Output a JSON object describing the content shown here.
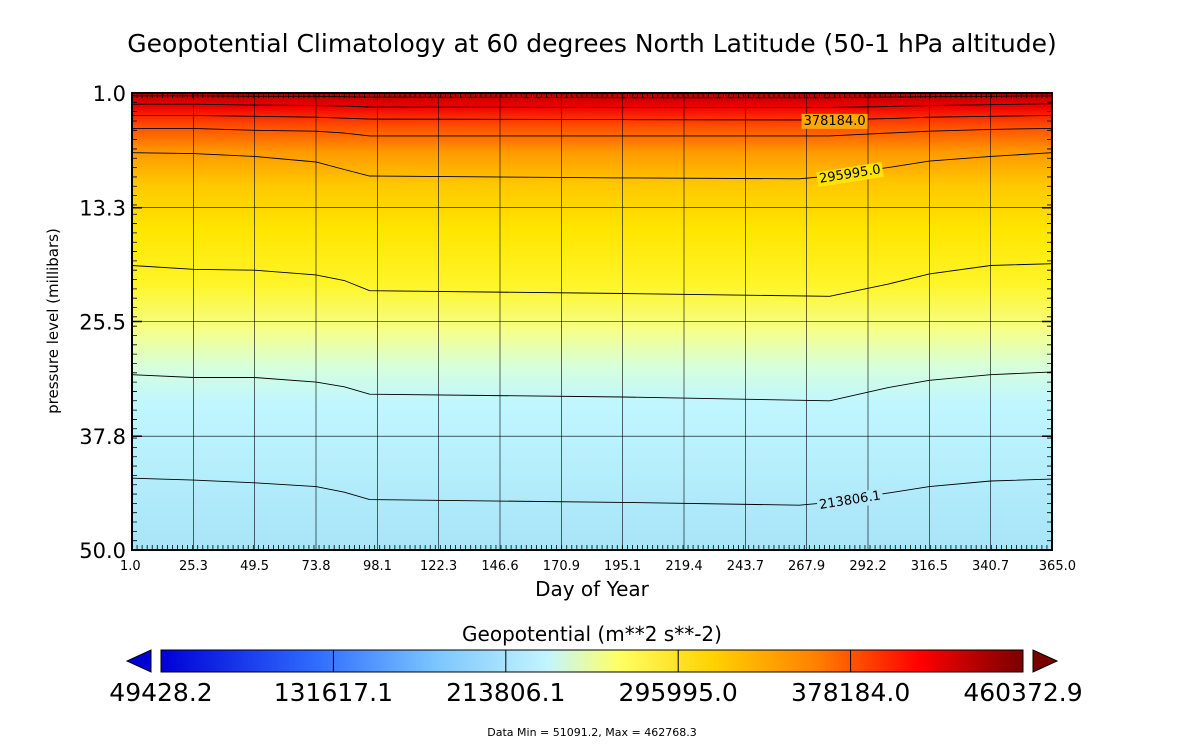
{
  "chart_data": {
    "type": "heatmap",
    "title": "Geopotential Climatology at 60 degrees North Latitude (50-1 hPa altitude)",
    "xlabel": "Day of Year",
    "ylabel": "pressure level (millibars)",
    "xlim": [
      1.0,
      365.0
    ],
    "ylim": [
      50.0,
      1.0
    ],
    "x_ticks": [
      "1.0",
      "25.3",
      "49.5",
      "73.8",
      "98.1",
      "122.3",
      "146.6",
      "170.9",
      "195.1",
      "219.4",
      "243.7",
      "267.9",
      "292.2",
      "316.5",
      "340.7",
      "365.0"
    ],
    "y_ticks": [
      "1.0",
      "13.3",
      "25.5",
      "37.8",
      "50.0"
    ],
    "grid": true,
    "colorbar": {
      "title": "Geopotential (m**2 s**-2)",
      "ticks": [
        "49428.2",
        "131617.1",
        "213806.1",
        "295995.0",
        "378184.0",
        "460372.9"
      ],
      "colors": [
        "#0000d8",
        "#2f6cff",
        "#7cc6ff",
        "#c4f5ff",
        "#ffff66",
        "#ffd200",
        "#ff8000",
        "#ff0000",
        "#7a0000"
      ]
    },
    "contours": [
      {
        "x": [
          1,
          25.3,
          49.5,
          73.8,
          85,
          95,
          195.1,
          277,
          300,
          316.5,
          340.7,
          365
        ],
        "p": [
          1.3,
          1.3,
          1.35,
          1.35,
          1.4,
          1.45,
          1.5,
          1.5,
          1.45,
          1.4,
          1.35,
          1.3
        ]
      },
      {
        "x": [
          1,
          25.3,
          49.5,
          73.8,
          85,
          95,
          195.1,
          277,
          300,
          316.5,
          340.7,
          365
        ],
        "p": [
          2.2,
          2.2,
          2.3,
          2.35,
          2.4,
          2.5,
          2.55,
          2.55,
          2.45,
          2.35,
          2.25,
          2.15
        ]
      },
      {
        "x": [
          1,
          25.3,
          49.5,
          73.8,
          85,
          95,
          195.1,
          277,
          300,
          316.5,
          340.7,
          365
        ],
        "p": [
          3.4,
          3.4,
          3.5,
          3.6,
          3.7,
          3.8,
          3.85,
          3.9,
          3.75,
          3.6,
          3.5,
          3.4
        ],
        "label": "378184.0",
        "label_x": 279
      },
      {
        "x": [
          1,
          25.3,
          49.5,
          73.8,
          85,
          95,
          195.1,
          277,
          300,
          316.5,
          340.7,
          365
        ],
        "p": [
          4.8,
          4.8,
          5.0,
          5.1,
          5.3,
          5.6,
          5.6,
          5.6,
          5.3,
          5.1,
          4.9,
          4.8
        ]
      },
      {
        "x": [
          1,
          25.3,
          49.5,
          73.8,
          85,
          95,
          195.1,
          265,
          277,
          300,
          316.5,
          340.7,
          365
        ],
        "p": [
          7.4,
          7.5,
          7.8,
          8.4,
          9.2,
          9.9,
          10.1,
          10.2,
          9.9,
          9.0,
          8.3,
          7.8,
          7.4
        ],
        "label": "295995.0",
        "label_x": 285
      },
      {
        "x": [
          1,
          25.3,
          49.5,
          73.8,
          85,
          95,
          195.1,
          277,
          300,
          316.5,
          340.7,
          365
        ],
        "p": [
          19.5,
          19.9,
          20.0,
          20.5,
          21.1,
          22.2,
          22.5,
          22.8,
          21.5,
          20.4,
          19.5,
          19.3
        ]
      },
      {
        "x": [
          1,
          25.3,
          49.5,
          73.8,
          85,
          95,
          195.1,
          277,
          300,
          316.5,
          340.7,
          365
        ],
        "p": [
          31.2,
          31.5,
          31.5,
          32.0,
          32.5,
          33.3,
          33.6,
          34.0,
          32.6,
          31.8,
          31.2,
          30.9
        ]
      },
      {
        "x": [
          1,
          25.3,
          49.5,
          73.8,
          85,
          95,
          195.1,
          265,
          277,
          300,
          316.5,
          340.7,
          365
        ],
        "p": [
          42.3,
          42.5,
          42.8,
          43.2,
          43.8,
          44.6,
          44.9,
          45.2,
          44.9,
          43.9,
          43.2,
          42.6,
          42.4
        ],
        "label": "213806.1",
        "label_x": 285
      }
    ]
  },
  "footer": "Data Min = 51091.2, Max = 462768.3"
}
